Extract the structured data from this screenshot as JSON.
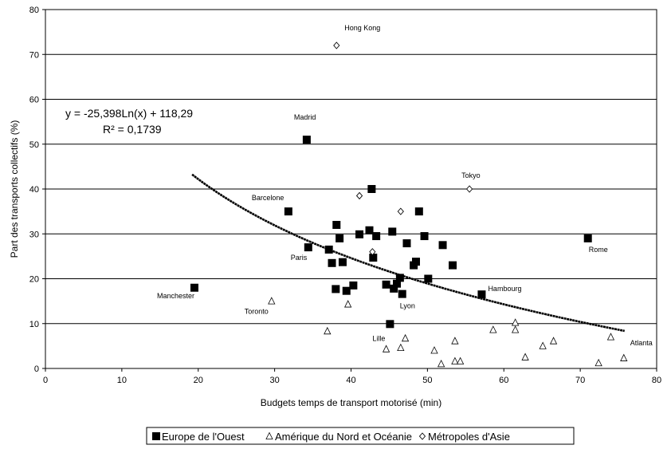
{
  "chart_data": {
    "type": "scatter",
    "title": "",
    "xlabel": "Budgets temps de transport motorisé (min)",
    "ylabel": "Part des transports collectifs (%)",
    "xlim": [
      0,
      80
    ],
    "ylim": [
      0,
      80
    ],
    "x_ticks": [
      "0",
      "10",
      "20",
      "30",
      "40",
      "50",
      "60",
      "70",
      "80"
    ],
    "y_ticks": [
      "0",
      "10",
      "20",
      "30",
      "40",
      "50",
      "60",
      "70",
      "80"
    ],
    "grid": "horizontal",
    "legend_position": "bottom",
    "series": [
      {
        "name": "Europe de l'Ouest",
        "marker": "square",
        "color": "#000000",
        "points": [
          [
            19.5,
            18.0
          ],
          [
            31.8,
            35.0
          ],
          [
            34.2,
            51.0
          ],
          [
            34.4,
            27.0
          ],
          [
            37.1,
            26.5
          ],
          [
            37.5,
            23.5
          ],
          [
            38.0,
            17.7
          ],
          [
            38.1,
            32.0
          ],
          [
            38.5,
            29.0
          ],
          [
            38.9,
            23.7
          ],
          [
            39.4,
            17.3
          ],
          [
            40.3,
            18.5
          ],
          [
            41.1,
            29.9
          ],
          [
            42.4,
            30.8
          ],
          [
            42.7,
            40.0
          ],
          [
            42.9,
            24.7
          ],
          [
            43.3,
            29.5
          ],
          [
            44.6,
            18.7
          ],
          [
            45.1,
            9.9
          ],
          [
            45.4,
            30.5
          ],
          [
            45.6,
            17.8
          ],
          [
            46.0,
            18.9
          ],
          [
            46.4,
            20.2
          ],
          [
            46.7,
            16.6
          ],
          [
            47.3,
            27.9
          ],
          [
            48.2,
            23.0
          ],
          [
            48.5,
            23.8
          ],
          [
            48.9,
            35.0
          ],
          [
            49.6,
            29.5
          ],
          [
            50.1,
            20.0
          ],
          [
            52.0,
            27.5
          ],
          [
            53.3,
            23.0
          ],
          [
            57.1,
            16.5
          ],
          [
            71.0,
            29.0
          ]
        ]
      },
      {
        "name": "Amérique du Nord et Océanie",
        "marker": "triangle",
        "color": "#ffffff",
        "points": [
          [
            29.6,
            15.0
          ],
          [
            36.9,
            8.3
          ],
          [
            39.6,
            14.3
          ],
          [
            44.6,
            4.3
          ],
          [
            46.5,
            4.6
          ],
          [
            47.1,
            6.7
          ],
          [
            50.9,
            4.0
          ],
          [
            51.8,
            1.0
          ],
          [
            53.6,
            6.1
          ],
          [
            53.6,
            1.6
          ],
          [
            54.3,
            1.6
          ],
          [
            58.6,
            8.6
          ],
          [
            61.5,
            10.2
          ],
          [
            61.5,
            8.6
          ],
          [
            62.8,
            2.5
          ],
          [
            65.1,
            5.0
          ],
          [
            66.5,
            6.1
          ],
          [
            72.4,
            1.2
          ],
          [
            74.0,
            7.0
          ],
          [
            75.7,
            2.3
          ]
        ]
      },
      {
        "name": "Métropoles d'Asie",
        "marker": "diamond",
        "color": "#ffffff",
        "points": [
          [
            38.1,
            72.0
          ],
          [
            41.1,
            38.5
          ],
          [
            42.8,
            26.0
          ],
          [
            46.5,
            35.0
          ],
          [
            55.5,
            40.0
          ]
        ]
      }
    ],
    "trendline": {
      "type": "logarithmic",
      "a": -25.398,
      "b": 118.29,
      "x_range": [
        19.2,
        75.8
      ],
      "equation": "y = -25,398Ln(x) + 118,29",
      "r2": "R² = 0,1739"
    },
    "annotations": [
      {
        "text": "Hong Kong",
        "x": 38.1,
        "y": 72.0
      },
      {
        "text": "Madrid",
        "x": 34.2,
        "y": 51.0
      },
      {
        "text": "Tokyo",
        "x": 55.5,
        "y": 40.0
      },
      {
        "text": "Barcelone",
        "x": 31.8,
        "y": 35.0
      },
      {
        "text": "Paris",
        "x": 34.4,
        "y": 27.0
      },
      {
        "text": "Rome",
        "x": 71.0,
        "y": 29.0
      },
      {
        "text": "Manchester",
        "x": 19.5,
        "y": 18.0
      },
      {
        "text": "Toronto",
        "x": 29.6,
        "y": 15.0
      },
      {
        "text": "Hambourg",
        "x": 57.1,
        "y": 16.5
      },
      {
        "text": "Lyon",
        "x": 46.7,
        "y": 16.6
      },
      {
        "text": "Lille",
        "x": 45.1,
        "y": 9.9
      },
      {
        "text": "Atlanta",
        "x": 75.7,
        "y": 2.3
      }
    ]
  }
}
